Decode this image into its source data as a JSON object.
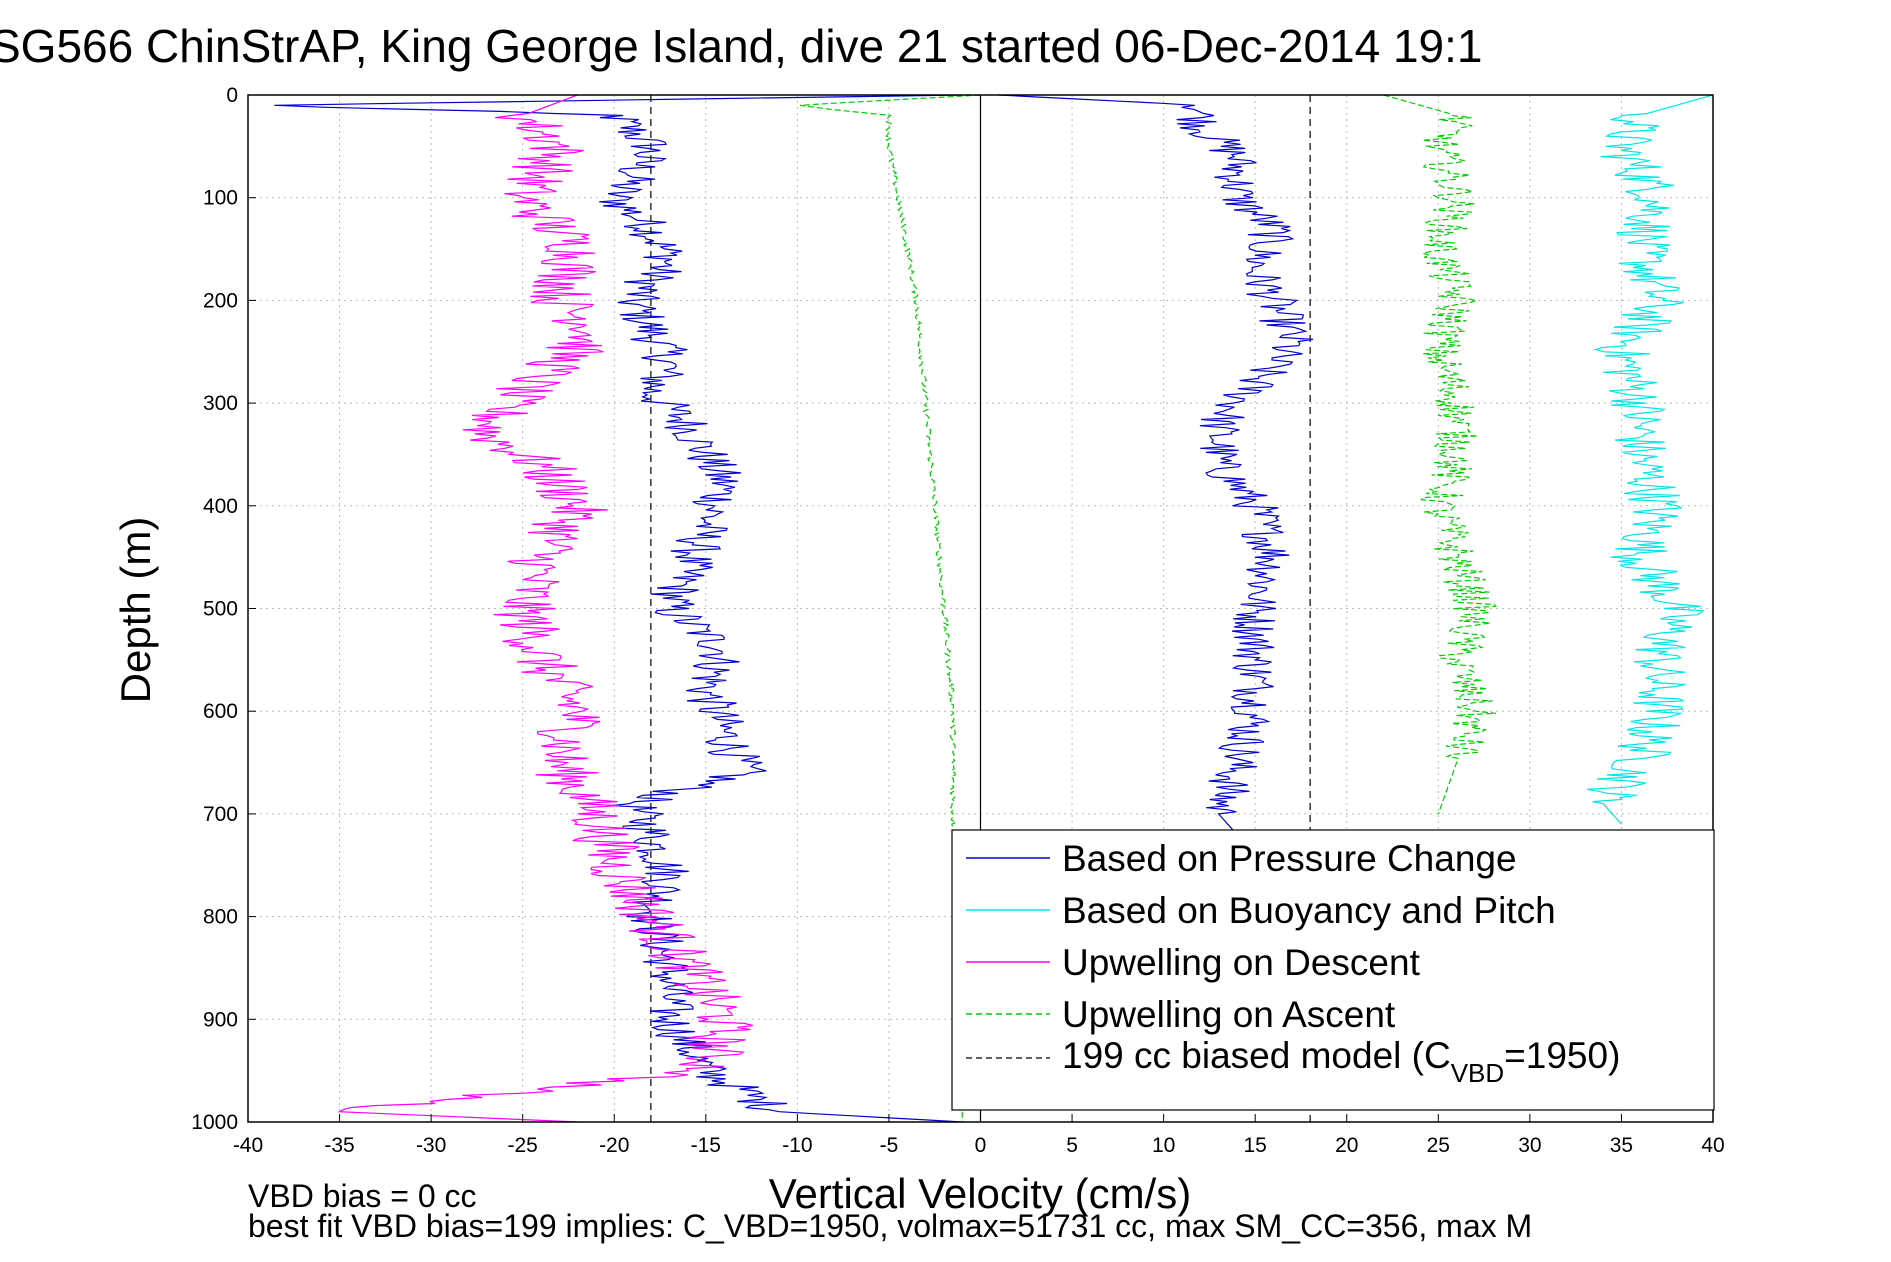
{
  "chart_data": {
    "type": "line",
    "title": "SG566 ChinStrAP, King George Island, dive 21 started 06-Dec-2014 19:1",
    "xlabel": "Vertical Velocity (cm/s)",
    "ylabel": "Depth (m)",
    "xlim": [
      -40,
      40
    ],
    "ylim": [
      0,
      1000
    ],
    "y_reversed": true,
    "grid": true,
    "legend_position": "bottom-right",
    "xticks": [
      "-40",
      "-35",
      "-30",
      "-25",
      "-20",
      "-15",
      "-10",
      "-5",
      "0",
      "5",
      "10",
      "15",
      "20",
      "25",
      "30",
      "35",
      "40"
    ],
    "yticks": [
      "0",
      "100",
      "200",
      "300",
      "400",
      "500",
      "600",
      "700",
      "800",
      "900",
      "1000"
    ],
    "legend": {
      "pressure": "Based on Pressure Change",
      "buoyancy": "Based on Buoyancy and Pitch",
      "descent": "Upwelling on Descent",
      "ascent": "Upwelling on Ascent",
      "model_main": "199 cc biased model (C",
      "model_sub": "VBD",
      "model_tail": "=1950)"
    },
    "reference_lines": {
      "zero_x": 0,
      "model_x_descent": -18,
      "model_x_ascent": 18
    },
    "series": [
      {
        "key": "pressure_descent",
        "color": "#0000cc",
        "style": "solid",
        "depth": [
          0,
          10,
          20,
          50,
          80,
          100,
          130,
          160,
          200,
          230,
          260,
          290,
          320,
          350,
          380,
          420,
          460,
          500,
          540,
          580,
          620,
          660,
          690,
          720,
          760,
          800,
          850,
          900,
          950,
          990,
          1000
        ],
        "velocity": [
          -1,
          -39,
          -20,
          -18,
          -19,
          -20,
          -18,
          -17,
          -19,
          -18,
          -17,
          -18,
          -16,
          -15,
          -14,
          -15,
          -16,
          -17,
          -14,
          -15,
          -14,
          -13,
          -19,
          -18,
          -17,
          -18,
          -17,
          -17,
          -15,
          -11,
          -1
        ]
      },
      {
        "key": "pressure_ascent",
        "color": "#0000cc",
        "style": "solid",
        "depth": [
          0,
          10,
          30,
          60,
          100,
          130,
          170,
          200,
          240,
          280,
          320,
          360,
          400,
          450,
          500,
          560,
          600,
          650,
          700,
          720
        ],
        "velocity": [
          1,
          12,
          12,
          14,
          14,
          16,
          15,
          16,
          17,
          15,
          13,
          13,
          15,
          16,
          15,
          15,
          15,
          14,
          13,
          14
        ]
      },
      {
        "key": "buoyancy_ascent",
        "color": "#00e5e5",
        "style": "solid",
        "depth": [
          0,
          20,
          50,
          100,
          150,
          200,
          250,
          300,
          350,
          400,
          450,
          500,
          550,
          600,
          650,
          690,
          710
        ],
        "velocity": [
          40,
          36,
          35,
          37,
          36,
          37,
          35,
          36,
          36,
          37,
          36,
          38,
          37,
          37,
          36,
          34,
          35
        ]
      },
      {
        "key": "descent_upwelling",
        "color": "#ff00ff",
        "style": "solid",
        "depth": [
          0,
          20,
          50,
          100,
          150,
          200,
          230,
          260,
          300,
          330,
          360,
          400,
          450,
          500,
          550,
          600,
          650,
          700,
          750,
          800,
          850,
          900,
          950,
          990,
          1000
        ],
        "velocity": [
          -22,
          -25,
          -23,
          -25,
          -22,
          -23,
          -21,
          -23,
          -26,
          -27,
          -24,
          -22,
          -24,
          -25,
          -24,
          -22,
          -23,
          -21,
          -20,
          -18,
          -16,
          -14,
          -15,
          -35,
          -22
        ]
      },
      {
        "key": "ascent_upwelling",
        "color": "#00cc00",
        "style": "dashed",
        "depth": [
          0,
          10,
          20,
          50,
          100,
          150,
          200,
          300,
          400,
          500,
          600,
          700,
          800,
          900,
          1000
        ],
        "velocity": [
          0,
          -10,
          -5,
          -5,
          -4.5,
          -4,
          -3.5,
          -3,
          -2.5,
          -2,
          -1.5,
          -1.5,
          -1,
          -1,
          -1
        ]
      },
      {
        "key": "ascent_upwelling_right",
        "color": "#00cc00",
        "style": "dashed",
        "depth": [
          0,
          20,
          50,
          100,
          150,
          200,
          250,
          300,
          350,
          400,
          450,
          500,
          550,
          600,
          650,
          700
        ],
        "velocity": [
          22,
          26,
          25,
          26,
          25,
          26,
          25,
          26,
          26,
          25,
          26,
          27,
          26,
          27,
          26,
          25
        ]
      }
    ]
  },
  "annotations": {
    "bias_line1": "VBD bias = 0 cc",
    "bias_line2": "best fit VBD bias=199 implies: C_VBD=1950, volmax=51731 cc, max SM_CC=356, max M"
  }
}
